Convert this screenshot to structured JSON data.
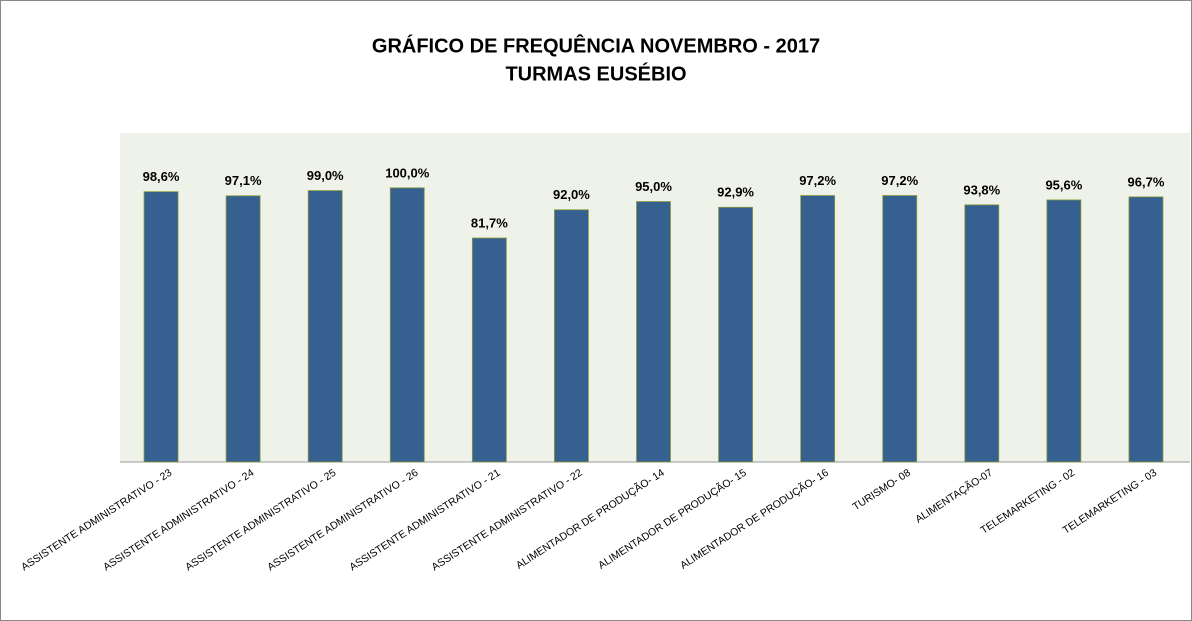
{
  "chart_data": {
    "type": "bar",
    "title": "GRÁFICO DE FREQUÊNCIA NOVEMBRO - 2017",
    "subtitle": "TURMAS EUSÉBIO",
    "categories": [
      "ASSISTENTE ADMINISTRATIVO - 23",
      "ASSISTENTE ADMINISTRATIVO - 24",
      "ASSISTENTE ADMINISTRATIVO - 25",
      "ASSISTENTE ADMINISTRATIVO - 26",
      "ASSISTENTE ADMINISTRATIVO - 21",
      "ASSISTENTE ADMINISTRATIVO - 22",
      "ALIMENTADOR DE PRODUÇÃO- 14",
      "ALIMENTADOR DE PRODUÇÃO- 15",
      "ALIMENTADOR DE PRODUÇÃO- 16",
      "TURISMO- 08",
      "ALIMENTAÇÃO-07",
      "TELEMARKETING - 02",
      "TELEMARKETING - 03"
    ],
    "values": [
      98.6,
      97.1,
      99.0,
      100.0,
      81.7,
      92.0,
      95.0,
      92.9,
      97.2,
      97.2,
      93.8,
      95.6,
      96.7
    ],
    "value_labels": [
      "98,6%",
      "97,1%",
      "99,0%",
      "100,0%",
      "81,7%",
      "92,0%",
      "95,0%",
      "92,9%",
      "97,2%",
      "97,2%",
      "93,8%",
      "95,6%",
      "96,7%"
    ],
    "color": "#36608f",
    "ylim": [
      0,
      120
    ]
  }
}
